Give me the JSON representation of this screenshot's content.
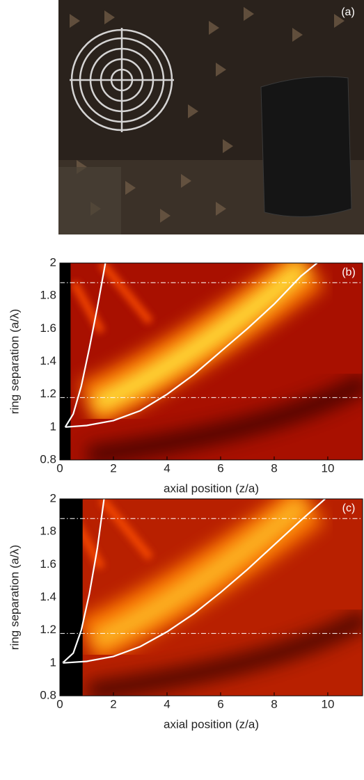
{
  "photo": {
    "label": "(a)"
  },
  "chart_data": [
    {
      "type": "heatmap",
      "panel_label": "(b)",
      "xlabel": "axial position (z/a)",
      "ylabel": "ring separation (a/λ)",
      "xlim": [
        0,
        11.3
      ],
      "ylim": [
        0.8,
        2
      ],
      "xticks": [
        0,
        2,
        4,
        6,
        8,
        10
      ],
      "yticks": [
        0.8,
        1,
        1.2,
        1.4,
        1.6,
        1.8,
        2
      ],
      "reference_lines": [
        1.18,
        1.88
      ],
      "reference_color": "#ffffff",
      "series": [
        {
          "color": "#ffffff",
          "x": [
            0.2,
            0.5,
            0.8,
            1.1,
            1.4,
            1.7
          ],
          "values": [
            1.0,
            1.08,
            1.25,
            1.48,
            1.73,
            2.0
          ]
        },
        {
          "color": "#ffffff",
          "x": [
            0.2,
            1,
            2,
            3,
            4,
            5,
            6,
            7,
            8,
            9,
            9.6
          ],
          "values": [
            1.0,
            1.01,
            1.04,
            1.1,
            1.2,
            1.32,
            1.46,
            1.6,
            1.75,
            1.92,
            2.0
          ]
        }
      ]
    },
    {
      "type": "heatmap",
      "panel_label": "(c)",
      "xlabel": "axial position (z/a)",
      "ylabel": "ring separation (a/λ)",
      "xlim": [
        0,
        11.3
      ],
      "ylim": [
        0.8,
        2
      ],
      "xticks": [
        0,
        2,
        4,
        6,
        8,
        10
      ],
      "yticks": [
        0.8,
        1,
        1.2,
        1.4,
        1.6,
        1.8,
        2
      ],
      "reference_lines": [
        1.18,
        1.88
      ],
      "reference_color": "#ffffff",
      "series": [
        {
          "color": "#ffffff",
          "x": [
            0.1,
            0.5,
            0.8,
            1.1,
            1.4,
            1.65
          ],
          "values": [
            1.0,
            1.06,
            1.2,
            1.42,
            1.7,
            2.0
          ]
        },
        {
          "color": "#ffffff",
          "x": [
            0.1,
            1,
            2,
            3,
            4,
            5,
            6,
            7,
            8,
            9,
            9.9
          ],
          "values": [
            1.0,
            1.01,
            1.04,
            1.1,
            1.19,
            1.3,
            1.43,
            1.57,
            1.72,
            1.87,
            2.0
          ]
        }
      ]
    }
  ]
}
